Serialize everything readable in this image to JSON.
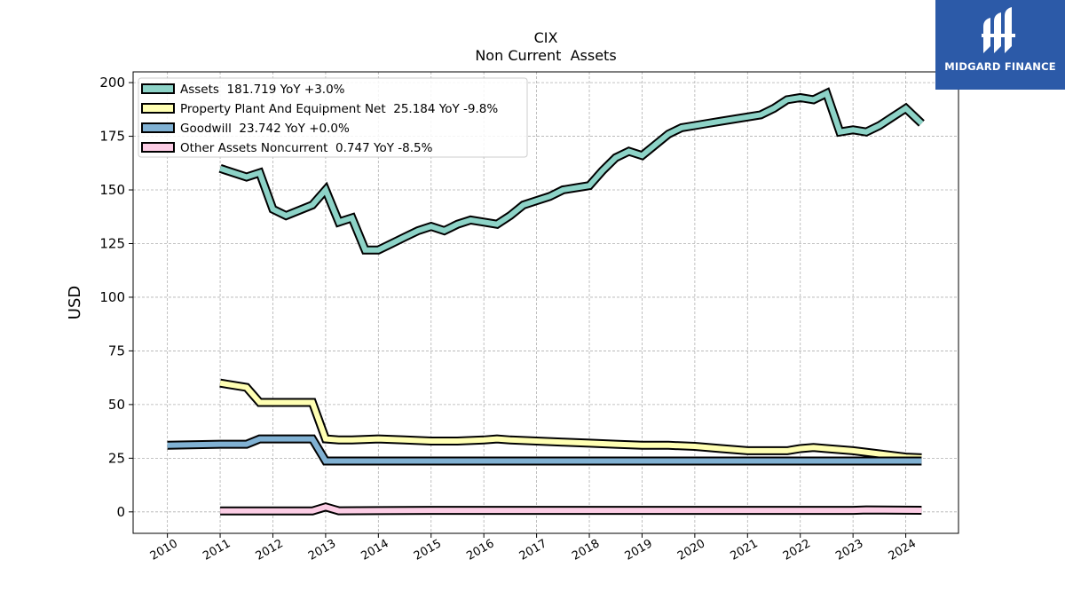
{
  "chart_data": {
    "type": "line",
    "title": "CIX",
    "subtitle": "Non Current  Assets",
    "ylabel": "USD",
    "xlabel": "",
    "xlim": [
      2009.35,
      2025.0
    ],
    "ylim": [
      -10,
      205
    ],
    "yticks": [
      0,
      25,
      50,
      75,
      100,
      125,
      150,
      175,
      200
    ],
    "xticks": [
      "2010",
      "2011",
      "2012",
      "2013",
      "2014",
      "2015",
      "2016",
      "2017",
      "2018",
      "2019",
      "2020",
      "2021",
      "2022",
      "2023",
      "2024"
    ],
    "grid": true,
    "legend_position": "upper-left",
    "series": [
      {
        "name": "Assets",
        "legend": "Assets  181.719 YoY +3.0%",
        "color": "#8dd3c7",
        "x": [
          2011.0,
          2011.5,
          2011.75,
          2012.0,
          2012.25,
          2012.75,
          2013.0,
          2013.25,
          2013.5,
          2013.75,
          2014.0,
          2014.25,
          2014.5,
          2014.75,
          2015.0,
          2015.25,
          2015.5,
          2015.75,
          2016.0,
          2016.25,
          2016.5,
          2016.75,
          2017.0,
          2017.25,
          2017.5,
          2017.75,
          2018.0,
          2018.25,
          2018.5,
          2018.75,
          2019.0,
          2019.25,
          2019.5,
          2019.75,
          2020.0,
          2020.25,
          2020.5,
          2020.75,
          2021.0,
          2021.25,
          2021.5,
          2021.75,
          2022.0,
          2022.25,
          2022.5,
          2022.75,
          2023.0,
          2023.25,
          2023.5,
          2023.75,
          2024.0,
          2024.3
        ],
        "y": [
          160,
          156,
          158,
          141,
          138,
          143,
          150,
          135,
          137,
          122,
          122,
          125,
          128,
          131,
          133,
          131,
          134,
          136,
          135,
          134,
          138,
          143,
          145,
          147,
          150,
          151,
          152,
          159,
          165,
          168,
          166,
          171,
          176,
          179,
          180,
          181,
          182,
          183,
          184,
          185,
          188,
          192,
          193,
          192,
          195,
          177,
          178,
          177,
          180,
          184,
          188,
          181
        ]
      },
      {
        "name": "Property Plant And Equipment Net",
        "legend": "Property Plant And Equipment Net  25.184 YoY -9.8%",
        "color": "#ffffb3",
        "x": [
          2011.0,
          2011.5,
          2011.75,
          2012.0,
          2012.5,
          2012.75,
          2013.0,
          2013.25,
          2013.5,
          2014.0,
          2014.5,
          2015.0,
          2015.5,
          2016.0,
          2016.25,
          2016.5,
          2017.0,
          2017.5,
          2018.0,
          2018.5,
          2019.0,
          2019.25,
          2019.5,
          2020.0,
          2020.5,
          2021.0,
          2021.25,
          2021.75,
          2022.0,
          2022.25,
          2022.5,
          2023.0,
          2023.5,
          2024.0,
          2024.3
        ],
        "y": [
          60,
          58,
          51,
          51,
          51,
          51,
          34,
          33.5,
          33.5,
          34,
          33.5,
          33,
          33,
          33.5,
          34,
          33.5,
          33,
          32.5,
          32,
          31.5,
          31,
          31,
          31,
          30.5,
          29.5,
          28.5,
          28.5,
          28.5,
          29.5,
          30,
          29.5,
          28.5,
          27,
          25.5,
          25.2
        ]
      },
      {
        "name": "Goodwill",
        "legend": "Goodwill  23.742 YoY +0.0%",
        "color": "#80b1d3",
        "x": [
          2010.0,
          2011.0,
          2011.5,
          2011.75,
          2012.0,
          2012.5,
          2012.75,
          2013.0,
          2013.25,
          2014.0,
          2015.0,
          2016.0,
          2017.0,
          2018.0,
          2019.0,
          2020.0,
          2021.0,
          2022.0,
          2023.0,
          2024.3
        ],
        "y": [
          31,
          31.5,
          31.5,
          34,
          34,
          34,
          34,
          23.7,
          23.7,
          23.7,
          23.7,
          23.7,
          23.7,
          23.7,
          23.7,
          23.7,
          23.7,
          23.7,
          23.7,
          23.7
        ]
      },
      {
        "name": "Other Assets Noncurrent",
        "legend": "Other Assets Noncurrent  0.747 YoY -8.5%",
        "color": "#fccde5",
        "x": [
          2011.0,
          2012.0,
          2012.75,
          2013.0,
          2013.25,
          2014.0,
          2015.0,
          2016.0,
          2017.0,
          2018.0,
          2019.0,
          2020.0,
          2021.0,
          2022.0,
          2023.0,
          2023.25,
          2024.3
        ],
        "y": [
          0.4,
          0.4,
          0.4,
          2.3,
          0.5,
          0.6,
          0.7,
          0.7,
          0.7,
          0.7,
          0.7,
          0.7,
          0.7,
          0.7,
          0.7,
          0.9,
          0.75
        ]
      }
    ]
  },
  "logo": {
    "text": "MIDGARD FINANCE",
    "color": "#2c5aa8"
  }
}
